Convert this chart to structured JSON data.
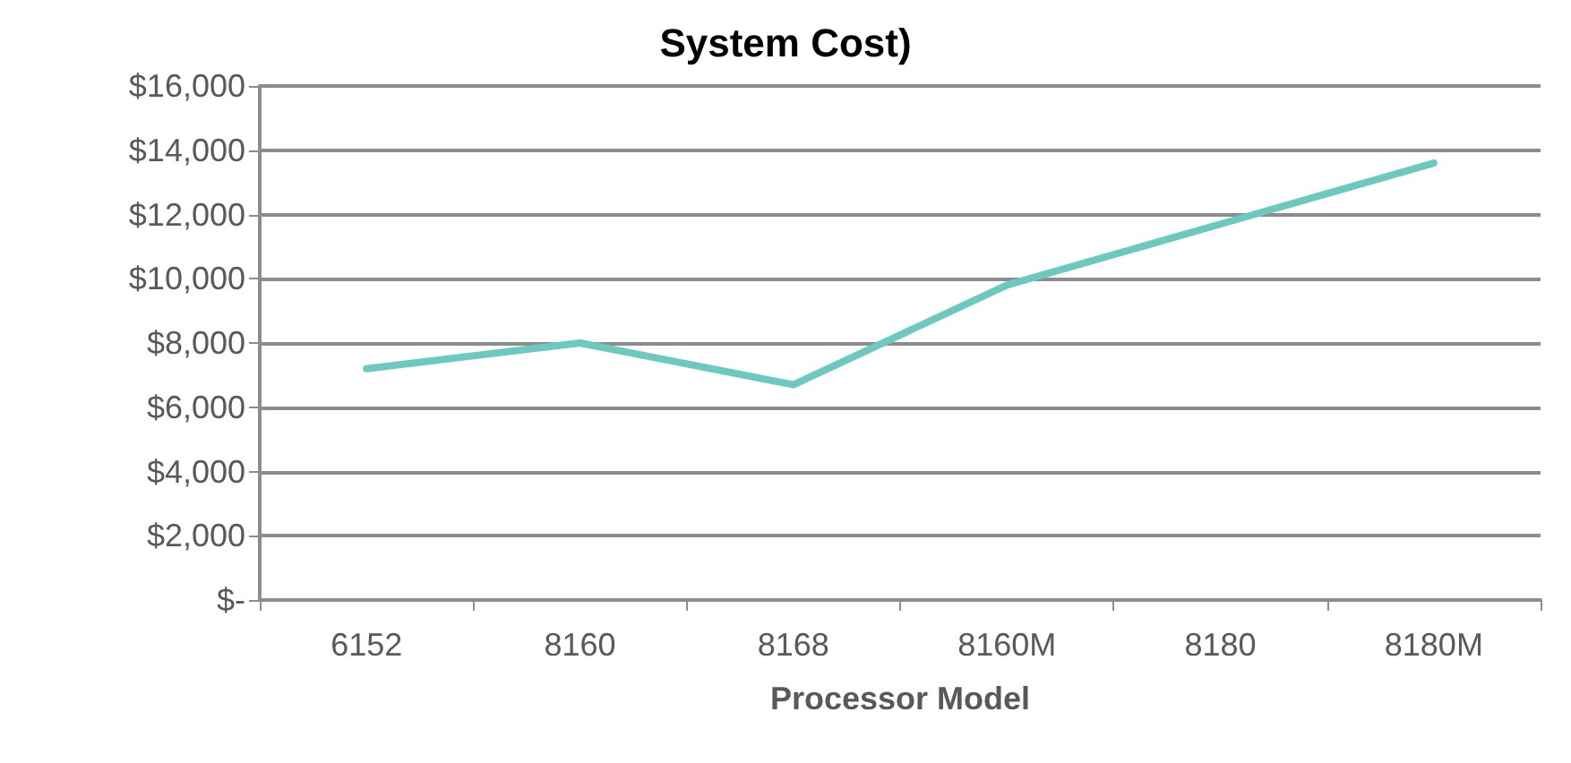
{
  "chart_data": {
    "type": "line",
    "title": "System Cost)",
    "xlabel": "Processor Model",
    "categories": [
      "6152",
      "8160",
      "8168",
      "8160M",
      "8180",
      "8180M"
    ],
    "series": [
      {
        "color": "#6cc9c0",
        "values": [
          7200,
          8000,
          6700,
          9800,
          11700,
          13600
        ]
      }
    ],
    "ylim": [
      0,
      16000
    ],
    "yticks": [
      {
        "value": 0,
        "label": "$-"
      },
      {
        "value": 2000,
        "label": "$2,000"
      },
      {
        "value": 4000,
        "label": "$4,000"
      },
      {
        "value": 6000,
        "label": "$6,000"
      },
      {
        "value": 8000,
        "label": "$8,000"
      },
      {
        "value": 10000,
        "label": "$10,000"
      },
      {
        "value": 12000,
        "label": "$12,000"
      },
      {
        "value": 14000,
        "label": "$14,000"
      },
      {
        "value": 16000,
        "label": "$16,000"
      }
    ],
    "grid": "y",
    "marker": "none",
    "line_style": "solid"
  }
}
